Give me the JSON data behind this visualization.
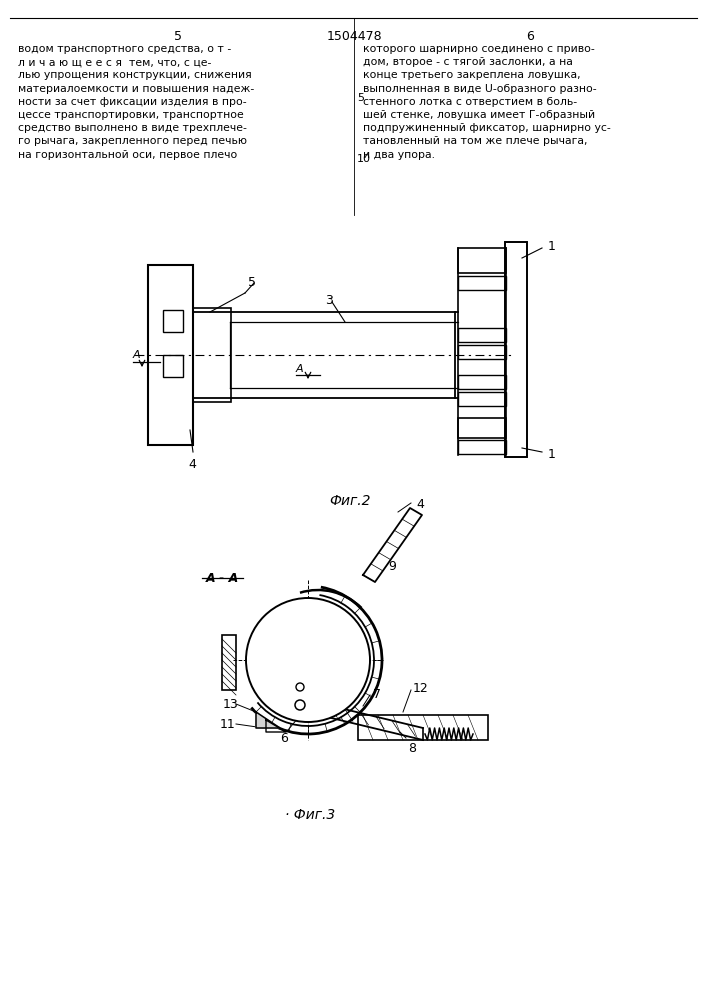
{
  "page_width": 7.07,
  "page_height": 10.0,
  "bg_color": "#ffffff",
  "line_color": "#000000",
  "header": {
    "page_left": "5",
    "patent_num": "1504478",
    "page_right": "6"
  },
  "text_left": [
    "водом транспортного средства, о т -",
    "л и ч а ю щ е е с я  тем, что, с це-",
    "лью упрощения конструкции, снижения",
    "материалоемкости и повышения надеж-",
    "ности за счет фиксации изделия в про-",
    "цессе транспортировки, транспортное",
    "средство выполнено в виде трехплече-",
    "го рычага, закрепленного перед печью",
    "на горизонтальной оси, первое плечо"
  ],
  "text_right": [
    "которого шарнирно соединено с приво-",
    "дом, второе - с тягой заслонки, а на",
    "конце третьего закреплена ловушка,",
    "выполненная в виде U-образного разно-",
    "стенного лотка с отверстием в боль-",
    "шей стенке, ловушка имеет Г-образный",
    "подпружиненный фиксатор, шарнирно ус-",
    "тановленный на том же плече рычага,",
    "и два упора."
  ],
  "line_number_5": "5",
  "line_number_10": "10",
  "fig2_label": "Фиг.2",
  "fig3_label": "Фиг.3"
}
